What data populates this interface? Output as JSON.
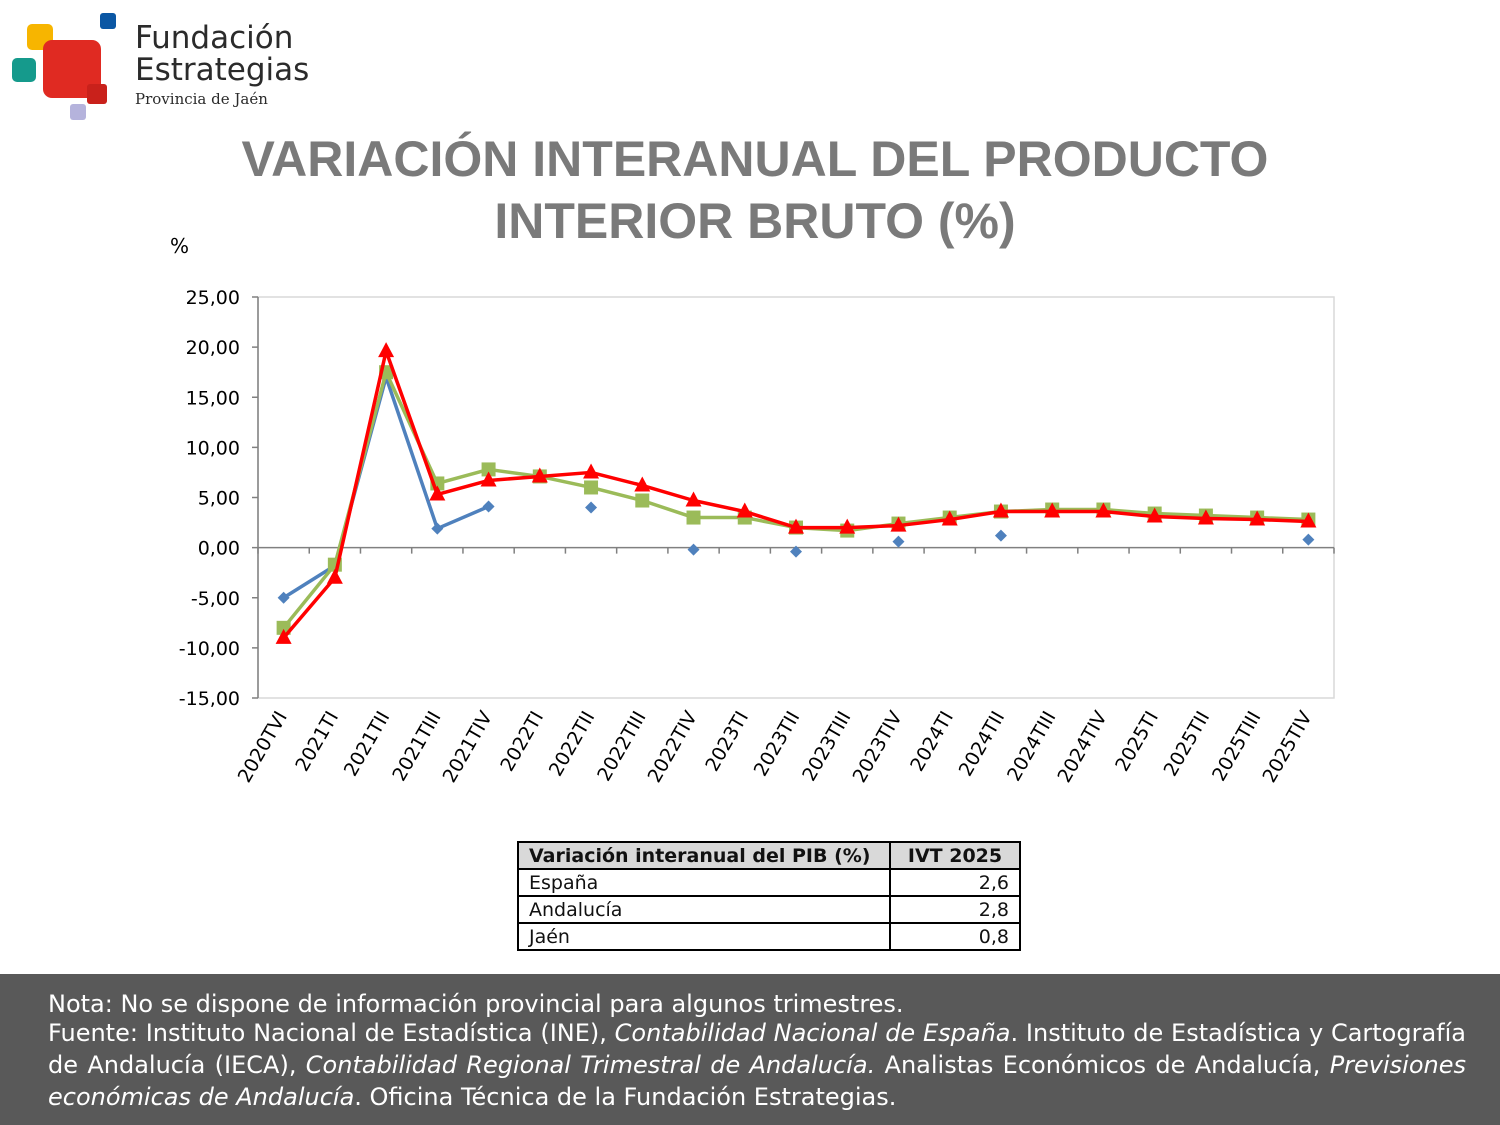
{
  "logo": {
    "line1": "Fundación",
    "line2": "Estrategias",
    "line3": "Provincia de Jaén"
  },
  "title": {
    "line1": "VARIACIÓN INTERANUAL DEL PRODUCTO",
    "line2": "INTERIOR BRUTO (%)"
  },
  "chart_data": {
    "type": "line",
    "ylabel": "%",
    "ylim": [
      -15,
      25
    ],
    "y_ticks": [
      "25,00",
      "20,00",
      "15,00",
      "10,00",
      "5,00",
      "0,00",
      "-5,00",
      "-10,00",
      "-15,00"
    ],
    "categories": [
      "2020TVI",
      "2021TI",
      "2021TII",
      "2021TIII",
      "2021TIV",
      "2022TI",
      "2022TII",
      "2022TIII",
      "2022TIV",
      "2023TI",
      "2023TII",
      "2023TIII",
      "2023TIV",
      "2024TI",
      "2024TII",
      "2024TIII",
      "2024TIV",
      "2025TI",
      "2025TII",
      "2025TIII",
      "2025TIV"
    ],
    "grid": false,
    "series": [
      {
        "color": "#4f81bd",
        "marker": "diamond",
        "values": [
          -5.0,
          -1.8,
          17.0,
          1.9,
          4.1,
          null,
          4.0,
          null,
          -0.2,
          null,
          -0.4,
          null,
          0.6,
          null,
          1.2,
          null,
          null,
          null,
          null,
          null,
          0.8
        ]
      },
      {
        "color": "#9bbb59",
        "marker": "square",
        "values": [
          -8.0,
          -1.7,
          17.5,
          6.4,
          7.8,
          7.1,
          6.0,
          4.7,
          3.0,
          3.0,
          2.0,
          1.7,
          2.4,
          3.0,
          3.6,
          3.8,
          3.8,
          3.4,
          3.2,
          3.0,
          2.8
        ]
      },
      {
        "color": "#ff0000",
        "marker": "triangle",
        "values": [
          -9.0,
          -3.0,
          19.6,
          5.3,
          6.7,
          7.1,
          7.5,
          6.2,
          4.7,
          3.6,
          2.0,
          2.0,
          2.2,
          2.8,
          3.6,
          3.6,
          3.6,
          3.1,
          2.9,
          2.8,
          2.6
        ]
      }
    ]
  },
  "summary_table": {
    "header": [
      "Variación interanual del PIB (%)",
      "IVT 2025"
    ],
    "rows": [
      [
        "España",
        "2,6"
      ],
      [
        "Andalucía",
        "2,8"
      ],
      [
        "Jaén",
        "0,8"
      ]
    ]
  },
  "footer": {
    "note": "Nota: No se dispone de información provincial para algunos trimestres.",
    "source_prefix": "Fuente: Instituto Nacional de Estadística (INE), ",
    "source_italic1": "Contabilidad Nacional de España",
    "source_mid1": ". Instituto de Estadística y Cartografía de Andalucía (IECA), ",
    "source_italic2": "Contabilidad Regional Trimestral de Andalucía.",
    "source_mid2": " Analistas Económicos de Andalucía, ",
    "source_italic3": "Previsiones económicas de Andalucía",
    "source_end": ". Oficina Técnica de la Fundación Estrategias."
  },
  "colors": {
    "title": "#7a7a7a",
    "footer_bg": "#595959",
    "logo_red": "#e02a22",
    "logo_yellow": "#f7b500",
    "logo_teal": "#159a8c",
    "logo_blue": "#0b57a4",
    "logo_lilac": "#b5b3dc"
  }
}
